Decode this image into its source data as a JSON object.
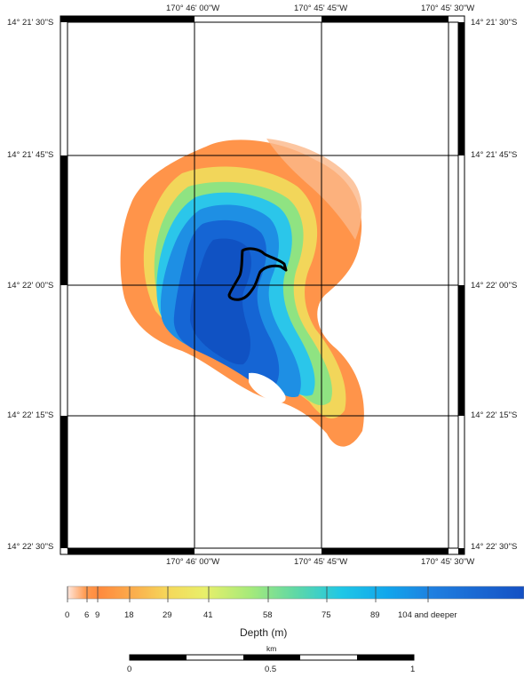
{
  "map": {
    "lon_labels": [
      "170° 46' 00\"W",
      "170° 45' 45\"W",
      "170° 45' 30\"W"
    ],
    "lat_labels": [
      "14° 21' 30\"S",
      "14° 21' 45\"S",
      "14° 22' 00\"S",
      "14° 22' 15\"S",
      "14° 22' 30\"S"
    ]
  },
  "legend": {
    "title": "Depth (m)",
    "ticks": [
      "0",
      "6",
      "9",
      "18",
      "29",
      "41",
      "58",
      "75",
      "89",
      "104 and deeper"
    ],
    "colors": [
      "#ffe6dc",
      "#ff9a4f",
      "#ff8a3d",
      "#fbab4c",
      "#f5d85a",
      "#e8ef6a",
      "#a6ea7a",
      "#5fd8a6",
      "#1fc7e6",
      "#12a6ec",
      "#1f7fe0",
      "#1450c4"
    ]
  },
  "scale_bar": {
    "unit": "km",
    "ticks": [
      "0",
      "0.5",
      "1"
    ]
  }
}
